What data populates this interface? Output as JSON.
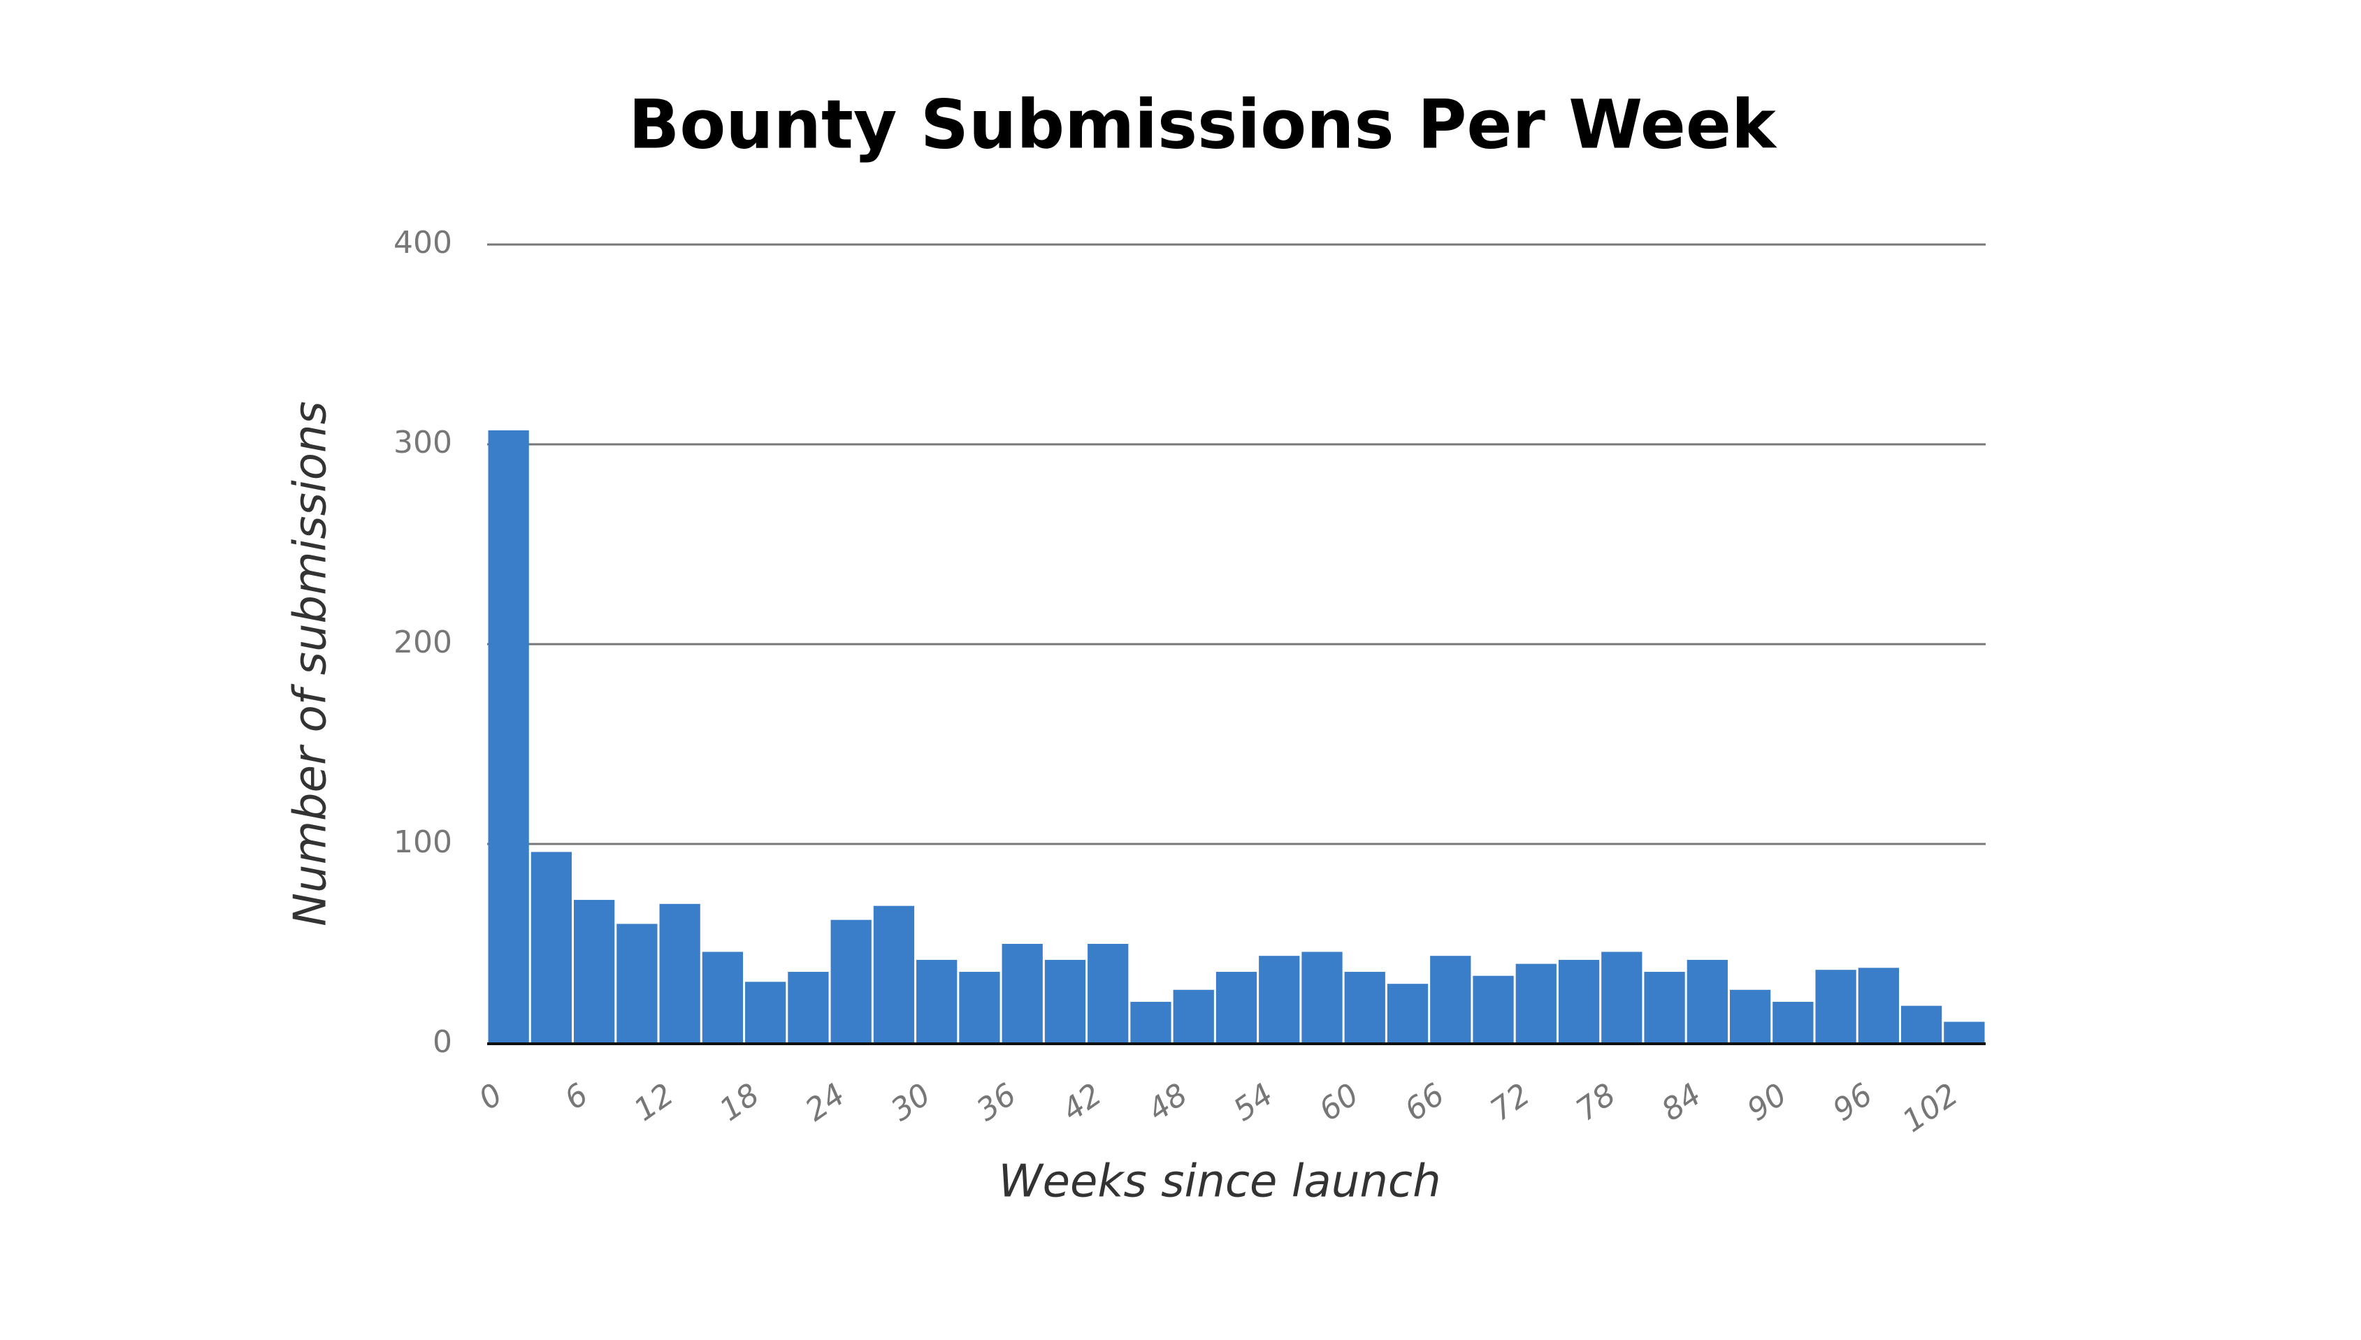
{
  "chart_data": {
    "type": "histogram",
    "title": "Bounty Submissions Per Week",
    "x_label": "Weeks since launch",
    "y_label": "Number of submissions",
    "bins": [
      0,
      3,
      6,
      9,
      12,
      15,
      18,
      21,
      24,
      27,
      30,
      33,
      36,
      39,
      42,
      45,
      48,
      51,
      54,
      57,
      60,
      63,
      66,
      69,
      72,
      75,
      78,
      81,
      84,
      87,
      90,
      93,
      96,
      99,
      102,
      105
    ],
    "values": [
      307,
      96,
      72,
      60,
      70,
      46,
      31,
      36,
      62,
      69,
      42,
      36,
      50,
      42,
      50,
      21,
      27,
      36,
      44,
      46,
      36,
      30,
      44,
      34,
      40,
      42,
      46,
      36,
      42,
      27,
      21,
      37,
      38,
      19,
      11
    ],
    "color": "#3a7dc9",
    "xlim": [
      0,
      105
    ],
    "xticks": [
      0,
      6,
      12,
      18,
      24,
      30,
      36,
      42,
      48,
      54,
      60,
      66,
      72,
      78,
      84,
      90,
      96,
      102
    ],
    "ylim": [
      0,
      400
    ],
    "yticks": [
      0,
      100,
      200,
      300,
      400
    ],
    "grid": true
  }
}
